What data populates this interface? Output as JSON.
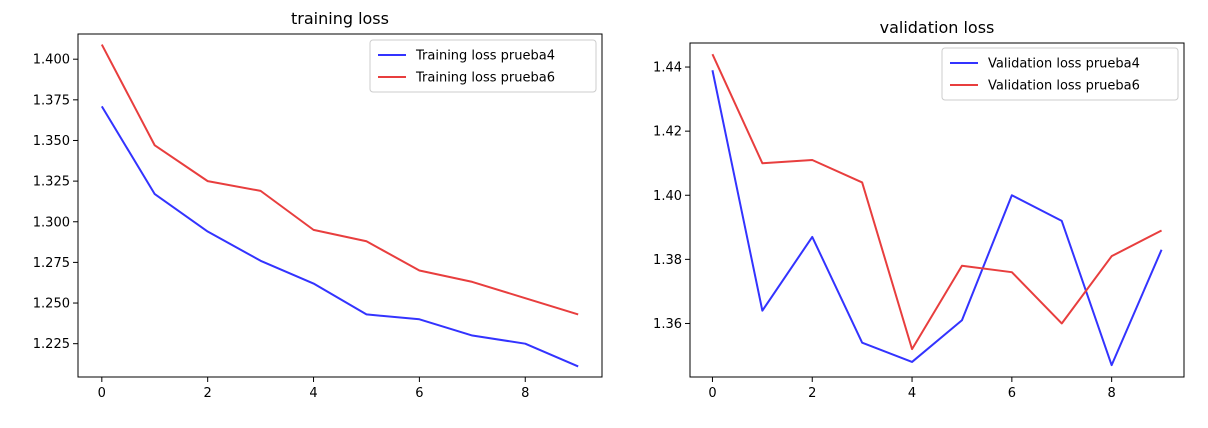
{
  "chart_data": [
    {
      "type": "line",
      "title": "training loss",
      "xlabel": "",
      "ylabel": "",
      "x": [
        0,
        1,
        2,
        3,
        4,
        5,
        6,
        7,
        8,
        9
      ],
      "xticks": [
        0,
        2,
        4,
        6,
        8
      ],
      "yticks": [
        1.225,
        1.25,
        1.275,
        1.3,
        1.325,
        1.35,
        1.375,
        1.4
      ],
      "ytick_labels": [
        "1.225",
        "1.250",
        "1.275",
        "1.300",
        "1.325",
        "1.350",
        "1.375",
        "1.400"
      ],
      "xlim": [
        -0.45,
        9.45
      ],
      "ylim": [
        1.2045,
        1.4155
      ],
      "legend_position": "top-right",
      "grid": false,
      "series": [
        {
          "name": "Training loss prueba4",
          "color": "#3333ff",
          "values": [
            1.371,
            1.317,
            1.294,
            1.276,
            1.262,
            1.243,
            1.24,
            1.23,
            1.225,
            1.211
          ]
        },
        {
          "name": "Training loss prueba6",
          "color": "#e83e3e",
          "values": [
            1.409,
            1.347,
            1.325,
            1.319,
            1.295,
            1.288,
            1.27,
            1.263,
            1.253,
            1.243
          ]
        }
      ]
    },
    {
      "type": "line",
      "title": "validation loss",
      "xlabel": "",
      "ylabel": "",
      "x": [
        0,
        1,
        2,
        3,
        4,
        5,
        6,
        7,
        8,
        9
      ],
      "xticks": [
        0,
        2,
        4,
        6,
        8
      ],
      "yticks": [
        1.36,
        1.38,
        1.4,
        1.42,
        1.44
      ],
      "ytick_labels": [
        "1.36",
        "1.38",
        "1.40",
        "1.42",
        "1.44"
      ],
      "xlim": [
        -0.45,
        9.45
      ],
      "ylim": [
        1.3433,
        1.4475
      ],
      "legend_position": "top-right",
      "grid": false,
      "series": [
        {
          "name": "Validation loss prueba4",
          "color": "#3333ff",
          "values": [
            1.439,
            1.364,
            1.387,
            1.354,
            1.348,
            1.361,
            1.4,
            1.392,
            1.347,
            1.383
          ]
        },
        {
          "name": "Validation loss prueba6",
          "color": "#e83e3e",
          "values": [
            1.444,
            1.41,
            1.411,
            1.404,
            1.352,
            1.378,
            1.376,
            1.36,
            1.381,
            1.389
          ]
        }
      ]
    }
  ]
}
